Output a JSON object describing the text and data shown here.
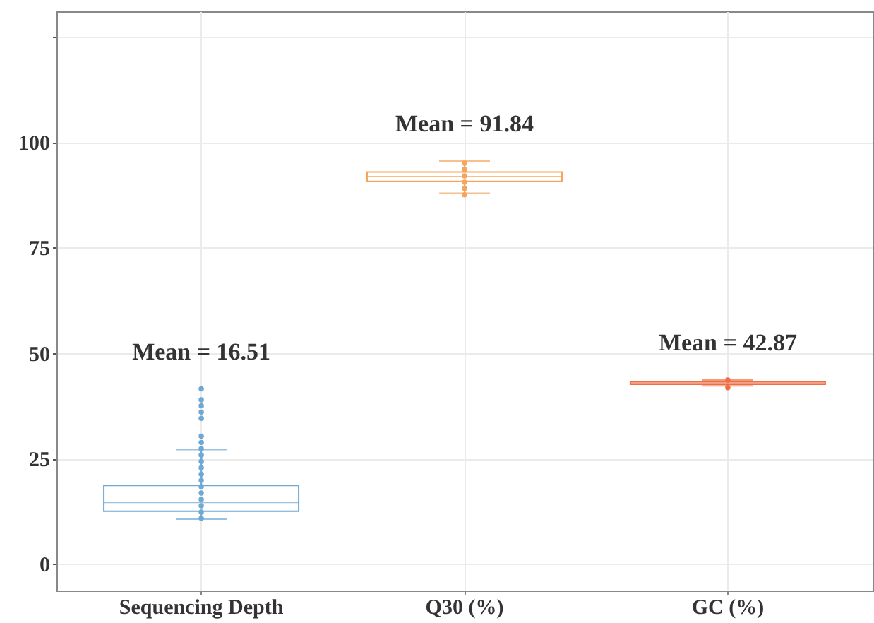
{
  "chart_data": {
    "type": "box",
    "categories": [
      "Sequencing Depth",
      "Q30 (%)",
      "GC (%)"
    ],
    "ylim": [
      -6.3,
      131
    ],
    "yticks": [
      0,
      25,
      50,
      75,
      100,
      {
        "value": 125,
        "label": null
      }
    ],
    "grid": true,
    "series": [
      {
        "colors": [
          "#6fa8d3",
          "#f5a55c",
          "#ef6f45"
        ],
        "boxes": [
          {
            "low": 10.6,
            "q1": 12.5,
            "median": 14.6,
            "q3": 18.6,
            "high": 27.1
          },
          {
            "low": 87.9,
            "q1": 90.7,
            "median": 91.8,
            "q3": 92.9,
            "high": 95.5
          },
          {
            "low": 42.2,
            "q1": 42.6,
            "median": 42.9,
            "q3": 43.2,
            "high": 43.6
          }
        ]
      },
      {
        "type": "scatter",
        "color": "#6fa8d3",
        "x": [
          "Sequencing Depth",
          "Sequencing Depth",
          "Sequencing Depth",
          "Sequencing Depth",
          "Sequencing Depth",
          "Sequencing Depth",
          "Sequencing Depth",
          "Sequencing Depth",
          "Sequencing Depth",
          "Sequencing Depth",
          "Sequencing Depth",
          "Sequencing Depth",
          "Sequencing Depth",
          "Sequencing Depth",
          "Sequencing Depth",
          "Sequencing Depth",
          "Sequencing Depth",
          "Sequencing Depth",
          "Sequencing Depth"
        ],
        "values": [
          10.8,
          12.3,
          13.8,
          15.3,
          16.8,
          18.3,
          19.8,
          21.3,
          22.8,
          24.3,
          25.8,
          27.3,
          28.8,
          30.3,
          34.5,
          36.0,
          37.5,
          38.9,
          41.5
        ]
      },
      {
        "type": "scatter",
        "color": "#f5a55c",
        "x": [
          "Q30 (%)",
          "Q30 (%)",
          "Q30 (%)",
          "Q30 (%)",
          "Q30 (%)",
          "Q30 (%)"
        ],
        "values": [
          87.5,
          89.0,
          90.5,
          92.0,
          93.5,
          95.0
        ]
      },
      {
        "type": "scatter",
        "color": "#ef6f45",
        "x": [
          "GC (%)",
          "GC (%)"
        ],
        "values": [
          41.8,
          43.6
        ]
      }
    ],
    "annotations": [
      "Mean = 16.51",
      "Mean = 91.84",
      "Mean = 42.87"
    ]
  }
}
